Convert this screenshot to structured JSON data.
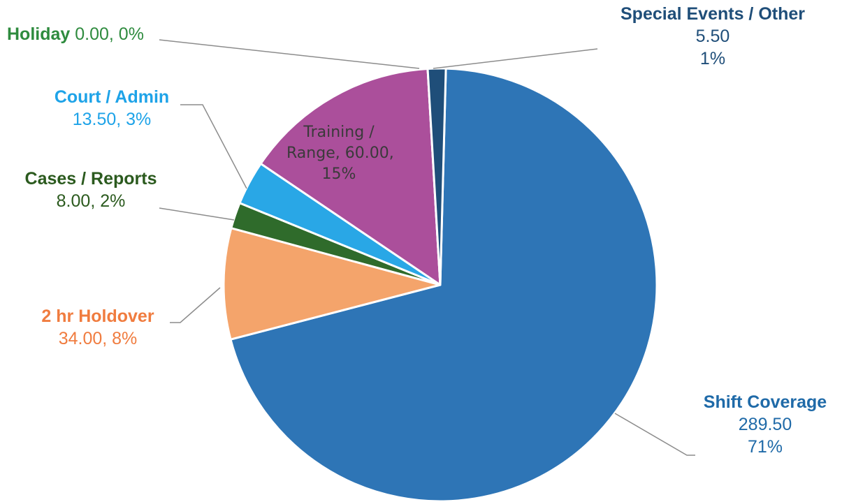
{
  "chart_data": {
    "type": "pie",
    "title": "",
    "slices": [
      {
        "name": "Shift Coverage",
        "value": 289.5,
        "value_label": "289.50",
        "percent_label": "71%",
        "color": "#2e75b6",
        "label_color": "#1f6aa8"
      },
      {
        "name": "2 hr Holdover",
        "value": 34.0,
        "value_label": "34.00, 8%",
        "color": "#f4a46b",
        "label_color": "#f07c3f"
      },
      {
        "name": "Cases / Reports",
        "value": 8.0,
        "value_label": "8.00, 2%",
        "color": "#2f6b2b",
        "label_color": "#2b5a1e"
      },
      {
        "name": "Court / Admin",
        "value": 13.5,
        "value_label": "13.50, 3%",
        "color": "#29a7e6",
        "label_color": "#1ea3e8"
      },
      {
        "name": "Training / Range",
        "value": 60.0,
        "label_lines": [
          "Training /",
          "Range, 60.00,",
          "15%"
        ],
        "color": "#ab4f9b",
        "label_color": "#3a3a3a"
      },
      {
        "name": "Holiday",
        "value": 0.0,
        "value_label": "0.00, 0%",
        "color": "#3a8c3a",
        "label_color": "#2e8b3e"
      },
      {
        "name": "Special Events / Other",
        "value": 5.5,
        "value_label": "5.50",
        "percent_label": "1%",
        "color": "#1f4e79",
        "label_color": "#1f4e79"
      }
    ]
  }
}
